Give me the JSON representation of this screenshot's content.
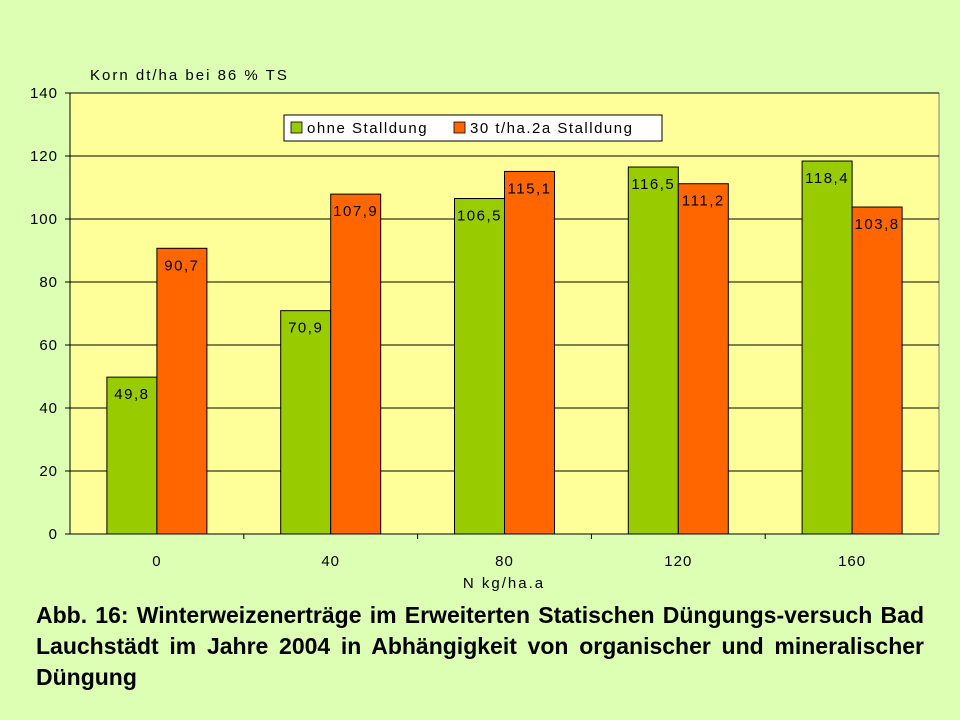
{
  "chart_data": {
    "type": "bar",
    "title": "",
    "ylabel": "Korn dt/ha bei 86 % TS",
    "xlabel": "N kg/ha.a",
    "categories": [
      "0",
      "40",
      "80",
      "120",
      "160"
    ],
    "ylim": [
      0,
      140
    ],
    "ytick_step": 20,
    "grid": true,
    "legend_position": "top-center",
    "series": [
      {
        "name": "ohne Stalldung",
        "color": "#99cc00",
        "values": [
          49.8,
          70.9,
          106.5,
          116.5,
          118.4
        ],
        "labels": [
          "49,8",
          "70,9",
          "106,5",
          "116,5",
          "118,4"
        ]
      },
      {
        "name": "30 t/ha.2a Stalldung",
        "color": "#ff6600",
        "values": [
          90.7,
          107.9,
          115.1,
          111.2,
          103.8
        ],
        "labels": [
          "90,7",
          "107,9",
          "115,1",
          "111,2",
          "103,8"
        ]
      }
    ],
    "plot_background": "#ffff99"
  },
  "caption": "Abb. 16: Winterweizenerträge im Erweiterten Statischen Düngungs-versuch Bad Lauchstädt im Jahre 2004 in Abhängigkeit von organischer und mineralischer Düngung"
}
